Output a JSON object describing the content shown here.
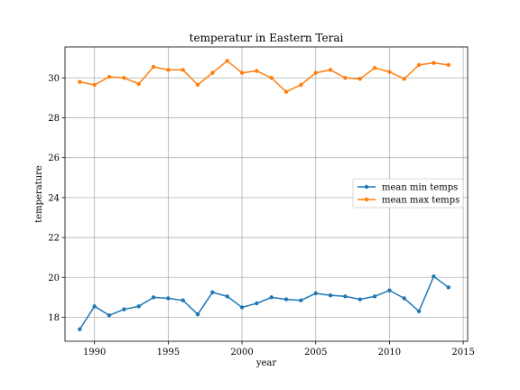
{
  "chart_data": {
    "type": "line",
    "title": "temperatur in Eastern Terai",
    "xlabel": "year",
    "ylabel": "temperature",
    "xlim": [
      1988,
      2015.3
    ],
    "ylim": [
      16.8,
      31.55
    ],
    "xticks": [
      1990,
      1995,
      2000,
      2005,
      2010,
      2015
    ],
    "yticks": [
      18,
      20,
      22,
      24,
      26,
      28,
      30
    ],
    "grid": true,
    "legend_position": "center-right",
    "x": [
      1989,
      1990,
      1991,
      1992,
      1993,
      1994,
      1995,
      1996,
      1997,
      1998,
      1999,
      2000,
      2001,
      2002,
      2003,
      2004,
      2005,
      2006,
      2007,
      2008,
      2009,
      2010,
      2011,
      2012,
      2013,
      2014
    ],
    "series": [
      {
        "name": "mean min temps",
        "color": "#1f77b4",
        "values": [
          17.4,
          18.55,
          18.1,
          18.4,
          18.55,
          19.0,
          18.95,
          18.85,
          18.15,
          19.25,
          19.05,
          18.5,
          18.7,
          19.0,
          18.9,
          18.85,
          19.2,
          19.1,
          19.05,
          18.9,
          19.05,
          19.35,
          18.95,
          18.3,
          20.05,
          19.5
        ]
      },
      {
        "name": "mean max temps",
        "color": "#ff7f0e",
        "values": [
          29.8,
          29.65,
          30.05,
          30.0,
          29.7,
          30.55,
          30.4,
          30.4,
          29.65,
          30.25,
          30.85,
          30.25,
          30.35,
          30.0,
          29.3,
          29.65,
          30.25,
          30.4,
          30.0,
          29.95,
          30.5,
          30.3,
          29.95,
          30.65,
          30.75,
          30.65
        ]
      }
    ]
  }
}
